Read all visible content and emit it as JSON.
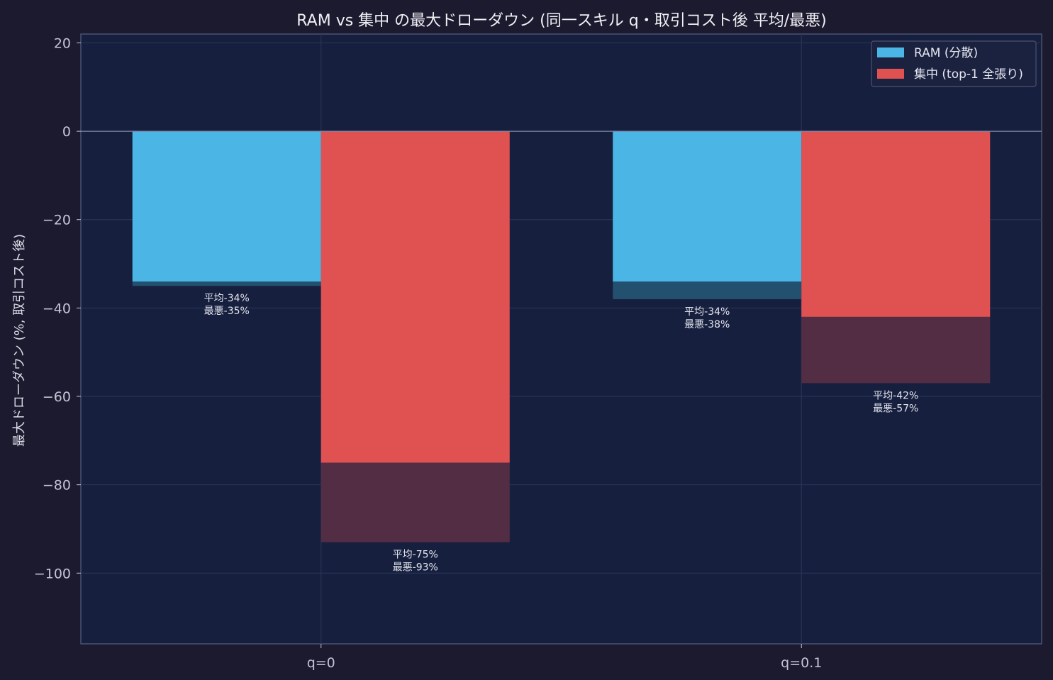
{
  "chart_data": {
    "type": "bar",
    "title": "RAM vs 集中 の最大ドローダウン (同一スキル q・取引コスト後 平均/最悪)",
    "xlabel": "",
    "ylabel": "最大ドローダウン (%, 取引コスト後)",
    "categories": [
      "q=0",
      "q=0.1"
    ],
    "ylim": [
      -116,
      22
    ],
    "yticks": [
      20,
      0,
      -20,
      -40,
      -60,
      -80,
      -100
    ],
    "ytick_labels": [
      "20",
      "0",
      "−20",
      "−40",
      "−60",
      "−80",
      "−100"
    ],
    "grid": true,
    "legend_position": "top-right",
    "series": [
      {
        "name": "RAM (分散)",
        "color": "#4bb6e6",
        "worst_color": "#24506f",
        "mean": [
          -34,
          -34
        ],
        "worst": [
          -35,
          -38
        ],
        "labels": [
          [
            "平均-34%",
            "最悪-35%"
          ],
          [
            "平均-34%",
            "最悪-38%"
          ]
        ]
      },
      {
        "name": "集中 (top-1 全張り)",
        "color": "#e05252",
        "worst_color": "#532d44",
        "mean": [
          -75,
          -42
        ],
        "worst": [
          -93,
          -57
        ],
        "labels": [
          [
            "平均-75%",
            "最悪-93%"
          ],
          [
            "平均-42%",
            "最悪-57%"
          ]
        ]
      }
    ]
  }
}
